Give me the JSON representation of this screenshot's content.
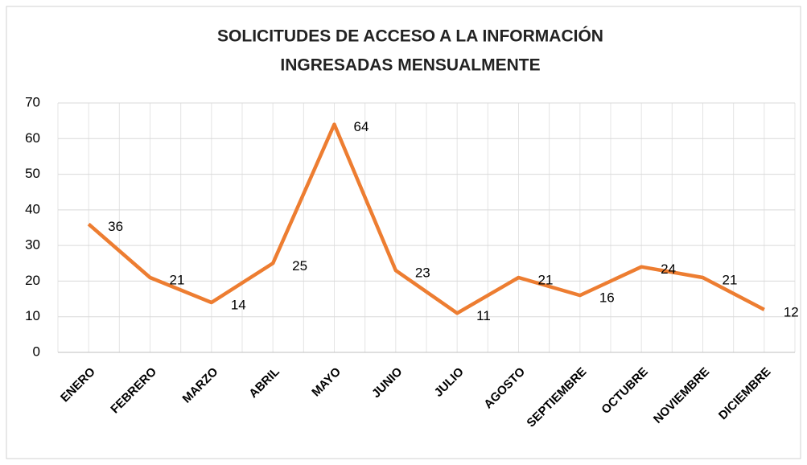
{
  "chart_data": {
    "type": "line",
    "title": [
      "SOLICITUDES DE ACCESO A LA INFORMACIÓN",
      "INGRESADAS MENSUALMENTE"
    ],
    "categories": [
      "ENERO",
      "FEBRERO",
      "MARZO",
      "ABRIL",
      "MAYO",
      "JUNIO",
      "JULIO",
      "AGOSTO",
      "SEPTIEMBRE",
      "OCTUBRE",
      "NOVIEMBRE",
      "DICIEMBRE"
    ],
    "values": [
      36,
      21,
      14,
      25,
      64,
      23,
      11,
      21,
      16,
      24,
      21,
      12
    ],
    "color": "#ed7d31",
    "ylim": [
      0,
      70
    ],
    "yticks": [
      0,
      10,
      20,
      30,
      40,
      50,
      60,
      70
    ],
    "grid": true
  }
}
